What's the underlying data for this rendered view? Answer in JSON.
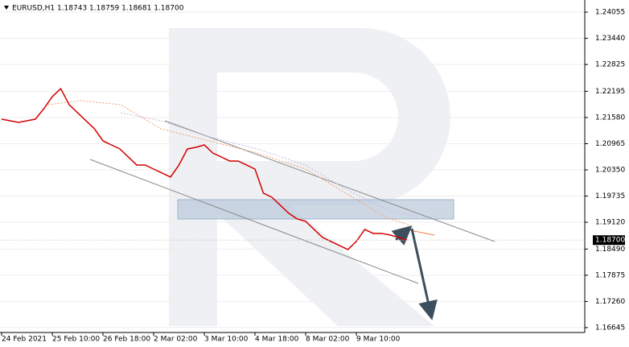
{
  "chart_data": {
    "type": "line",
    "title": "EURUSD,H1  1.18743 1.18759 1.18681 1.18700",
    "price_label": "1.18700",
    "categories": [
      "24 Feb 2021",
      null,
      null,
      null,
      null,
      null,
      "25 Feb 10:00",
      null,
      null,
      null,
      null,
      null,
      "26 Feb 18:00",
      null,
      null,
      null,
      null,
      null,
      "2 Mar 02:00",
      null,
      null,
      null,
      null,
      null,
      "3 Mar 10:00",
      null,
      null,
      null,
      null,
      null,
      "4 Mar 18:00",
      null,
      null,
      null,
      null,
      null,
      "8 Mar 02:00",
      null,
      null,
      null,
      null,
      null,
      "9 Mar 10:00",
      null,
      null,
      null,
      null,
      null,
      null
    ],
    "series": [
      {
        "name": "EURUSD",
        "color": "#d40000",
        "values": [
          1.21541,
          1.21503,
          1.21466,
          1.21503,
          1.21541,
          1.21787,
          1.2207,
          1.22259,
          1.21881,
          1.21692,
          1.21503,
          1.21314,
          1.21031,
          1.20936,
          1.20842,
          1.20653,
          1.20464,
          1.20464,
          1.20369,
          1.20275,
          1.2018,
          1.20464,
          1.20842,
          1.2088,
          1.20936,
          1.20747,
          1.20653,
          1.20559,
          1.20559,
          1.20464,
          1.20369,
          1.19802,
          1.19708,
          1.19519,
          1.1933,
          1.19198,
          1.19141,
          1.18952,
          1.18763,
          1.18668,
          1.18574,
          1.18479,
          1.18668,
          1.18952,
          1.18857,
          1.18857,
          1.1882,
          1.18763,
          1.187
        ]
      }
    ],
    "ylim": [
      1.1653,
      1.2434
    ],
    "yticks": [
      1.24055,
      {
        "value": 1.2344,
        "label": "1.23440"
      },
      1.22825,
      1.22195,
      {
        "value": 1.2158,
        "label": "1.21580"
      },
      1.20965,
      {
        "value": 1.2035,
        "label": "1.20350"
      },
      1.19735,
      {
        "value": 1.1912,
        "label": "1.19120"
      },
      {
        "value": 1.1849,
        "label": "1.18490"
      },
      1.17875,
      {
        "value": 1.1726,
        "label": "1.17260"
      },
      1.16645
    ],
    "grid": true
  }
}
